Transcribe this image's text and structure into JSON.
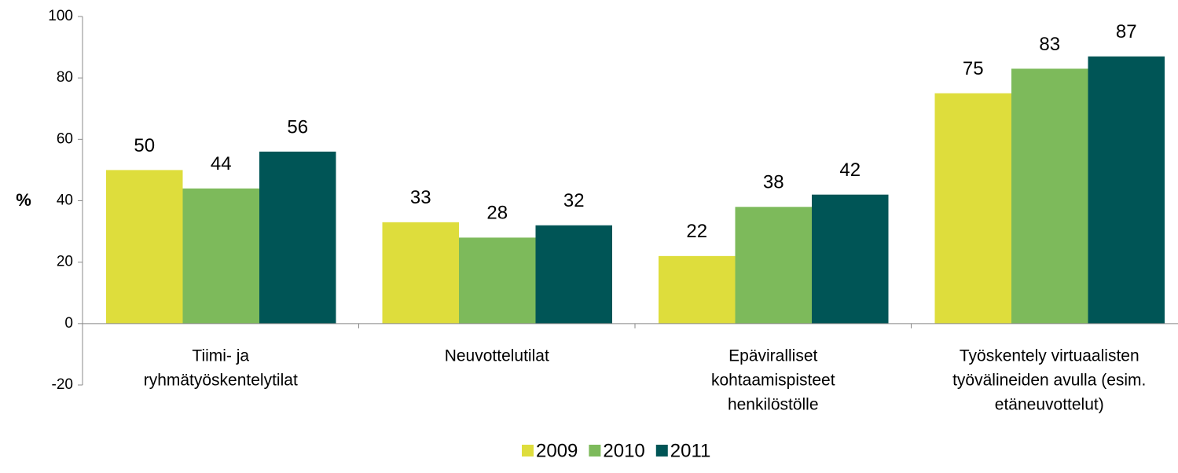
{
  "chart_data": {
    "type": "bar",
    "y_label": "%",
    "categories": [
      [
        "Tiimi- ja",
        "ryhmätyöskentelytilat"
      ],
      [
        "Neuvottelutilat"
      ],
      [
        "Epäviralliset",
        "kohtaamispisteet",
        "henkilöstölle"
      ],
      [
        "Työskentely virtuaalisten",
        "työvälineiden avulla (esim.",
        "etäneuvottelut)"
      ]
    ],
    "series": [
      {
        "name": "2009",
        "color": "#dedd3c",
        "values": [
          50,
          33,
          22,
          75
        ]
      },
      {
        "name": "2010",
        "color": "#7dba5b",
        "values": [
          44,
          28,
          38,
          83
        ]
      },
      {
        "name": "2011",
        "color": "#005556",
        "values": [
          56,
          32,
          42,
          87
        ]
      }
    ],
    "ylim": [
      -20,
      100
    ],
    "yticks": [
      -20,
      0,
      20,
      40,
      60,
      80,
      100
    ],
    "grid": false,
    "legend": "bottom"
  }
}
